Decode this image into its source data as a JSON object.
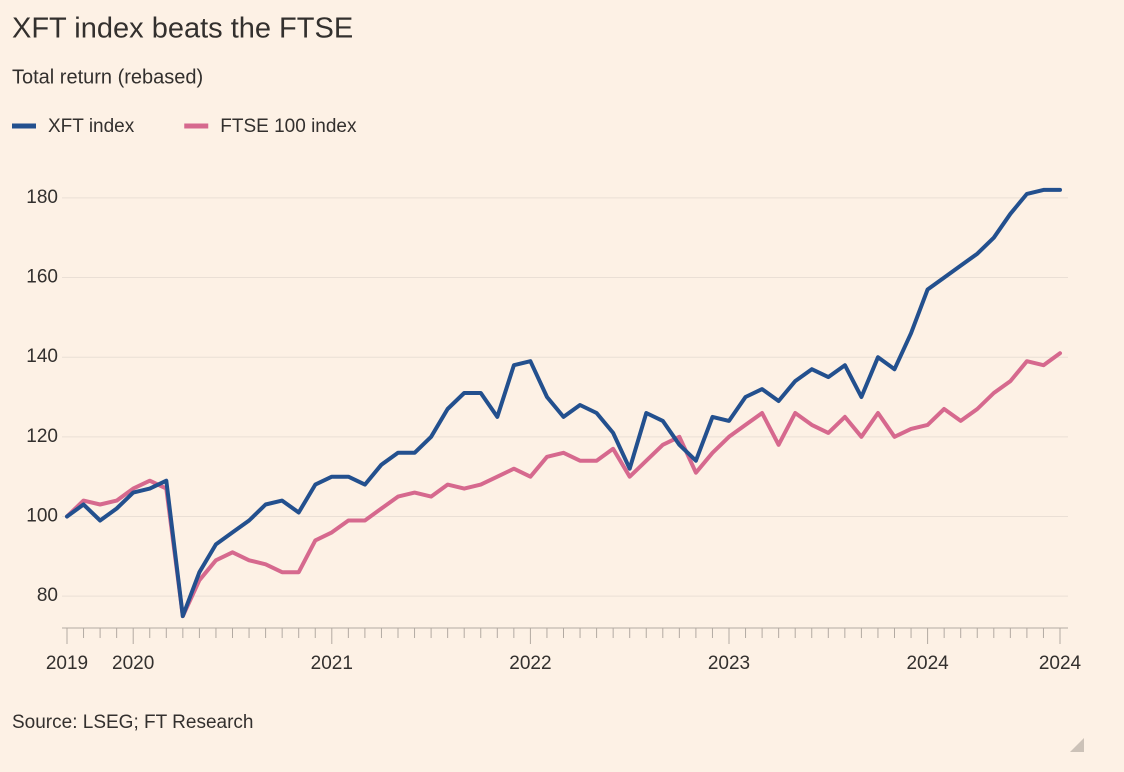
{
  "chart_data": {
    "type": "line",
    "title": "XFT index beats the FTSE",
    "subtitle": "Total return (rebased)",
    "source": "Source: LSEG; FT Research",
    "x": [
      "2019",
      null,
      null,
      null,
      "2020",
      null,
      null,
      null,
      null,
      null,
      null,
      null,
      null,
      null,
      null,
      null,
      "2021",
      null,
      null,
      null,
      null,
      null,
      null,
      null,
      null,
      null,
      null,
      null,
      "2022",
      null,
      null,
      null,
      null,
      null,
      null,
      null,
      null,
      null,
      null,
      null,
      "2023",
      null,
      null,
      null,
      null,
      null,
      null,
      null,
      null,
      null,
      null,
      null,
      "2024",
      null,
      null,
      null,
      null,
      null,
      null,
      null,
      "2024"
    ],
    "series": [
      {
        "name": "XFT index",
        "color": "#23508e",
        "values": [
          100,
          103,
          99,
          102,
          106,
          107,
          109,
          75,
          86,
          93,
          96,
          99,
          103,
          104,
          101,
          108,
          110,
          110,
          108,
          113,
          116,
          116,
          120,
          127,
          131,
          131,
          125,
          138,
          139,
          130,
          125,
          128,
          126,
          121,
          112,
          126,
          124,
          118,
          114,
          125,
          124,
          130,
          132,
          129,
          134,
          137,
          135,
          138,
          130,
          140,
          137,
          146,
          157,
          160,
          163,
          166,
          170,
          176,
          181,
          182,
          182
        ]
      },
      {
        "name": "FTSE 100 index",
        "color": "#d6698e",
        "values": [
          100,
          104,
          103,
          104,
          107,
          109,
          107,
          75,
          84,
          89,
          91,
          89,
          88,
          86,
          86,
          94,
          96,
          99,
          99,
          102,
          105,
          106,
          105,
          108,
          107,
          108,
          110,
          112,
          110,
          115,
          116,
          114,
          114,
          117,
          110,
          114,
          118,
          120,
          111,
          116,
          120,
          123,
          126,
          118,
          126,
          123,
          121,
          125,
          120,
          126,
          120,
          122,
          123,
          127,
          124,
          127,
          131,
          134,
          139,
          138,
          141
        ]
      }
    ],
    "ylim": [
      72,
      185
    ],
    "yticks": [
      80,
      100,
      120,
      140,
      160,
      180
    ],
    "grid": true,
    "legend": "top-left"
  }
}
